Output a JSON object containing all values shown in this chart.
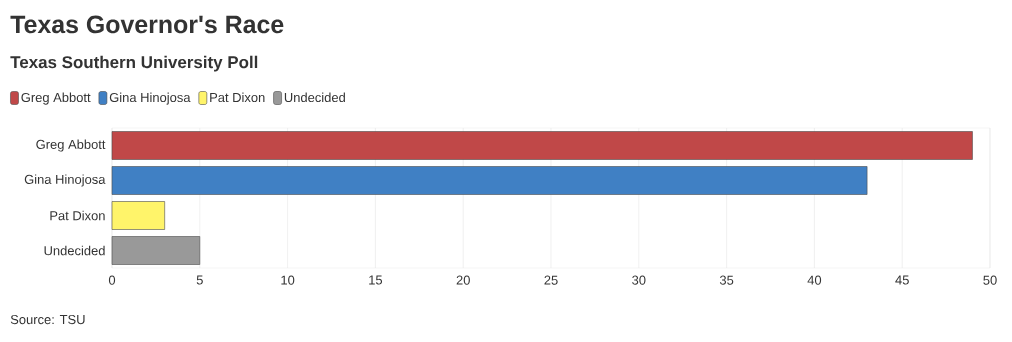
{
  "chart_data": {
    "type": "bar",
    "orientation": "horizontal",
    "title": "Texas Governor's Race",
    "subtitle": "Texas Southern University Poll",
    "categories": [
      "Greg Abbott",
      "Gina Hinojosa",
      "Pat Dixon",
      "Undecided"
    ],
    "series": [
      {
        "name": "Greg Abbott",
        "color": "#c04848",
        "values": [
          49,
          null,
          null,
          null
        ]
      },
      {
        "name": "Gina Hinojosa",
        "color": "#4080c4",
        "values": [
          null,
          43,
          null,
          null
        ]
      },
      {
        "name": "Pat Dixon",
        "color": "#fff46a",
        "values": [
          null,
          null,
          3,
          null
        ]
      },
      {
        "name": "Undecided",
        "color": "#999999",
        "values": [
          null,
          null,
          null,
          5
        ]
      }
    ],
    "xlim": [
      0,
      50
    ],
    "xticks": [
      0,
      5,
      10,
      15,
      20,
      25,
      30,
      35,
      40,
      45,
      50
    ],
    "grid": "x",
    "legend": "top left",
    "annotations": [
      "Source: TSU"
    ]
  }
}
